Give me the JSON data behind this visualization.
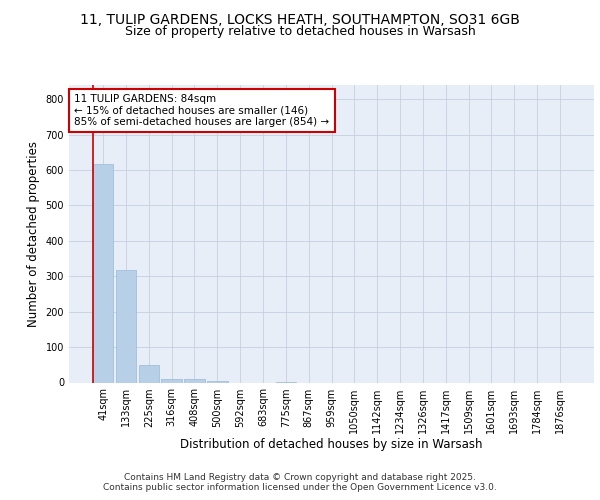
{
  "title_line1": "11, TULIP GARDENS, LOCKS HEATH, SOUTHAMPTON, SO31 6GB",
  "title_line2": "Size of property relative to detached houses in Warsash",
  "xlabel": "Distribution of detached houses by size in Warsash",
  "ylabel": "Number of detached properties",
  "footer_line1": "Contains HM Land Registry data © Crown copyright and database right 2025.",
  "footer_line2": "Contains public sector information licensed under the Open Government Licence v3.0.",
  "categories": [
    "41sqm",
    "133sqm",
    "225sqm",
    "316sqm",
    "408sqm",
    "500sqm",
    "592sqm",
    "683sqm",
    "775sqm",
    "867sqm",
    "959sqm",
    "1050sqm",
    "1142sqm",
    "1234sqm",
    "1326sqm",
    "1417sqm",
    "1509sqm",
    "1601sqm",
    "1693sqm",
    "1784sqm",
    "1876sqm"
  ],
  "values": [
    617,
    317,
    50,
    10,
    10,
    3,
    0,
    0,
    1,
    0,
    0,
    0,
    0,
    0,
    0,
    0,
    0,
    0,
    0,
    0,
    0
  ],
  "bar_color": "#b8cfe8",
  "bar_edge_color": "#9ab8d8",
  "red_line_color": "#cc0000",
  "red_line_x": -0.45,
  "annotation_text_line1": "11 TULIP GARDENS: 84sqm",
  "annotation_text_line2": "← 15% of detached houses are smaller (146)",
  "annotation_text_line3": "85% of semi-detached houses are larger (854) →",
  "annotation_box_color": "#ffffff",
  "annotation_box_edge_color": "#cc0000",
  "ylim": [
    0,
    840
  ],
  "yticks": [
    0,
    100,
    200,
    300,
    400,
    500,
    600,
    700,
    800
  ],
  "background_color": "#e8eef8",
  "grid_color": "#c5cfe0",
  "title_fontsize": 10,
  "subtitle_fontsize": 9,
  "axis_label_fontsize": 8.5,
  "tick_fontsize": 7,
  "annotation_fontsize": 7.5,
  "footer_fontsize": 6.5
}
